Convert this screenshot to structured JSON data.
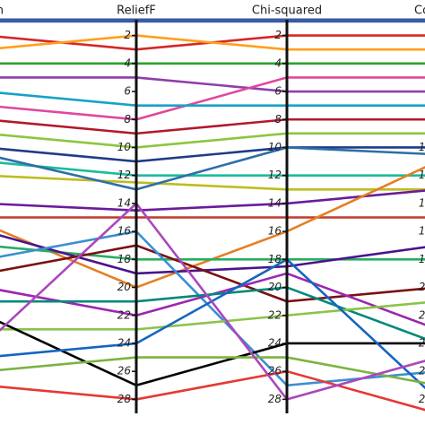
{
  "chart_data": {
    "type": "parallel",
    "axes": [
      "m",
      "ReliefF",
      "Chi-squared",
      "Co"
    ],
    "ylim": [
      29,
      1
    ],
    "yticks": [
      2,
      4,
      6,
      8,
      10,
      12,
      14,
      16,
      18,
      20,
      22,
      24,
      26,
      28
    ],
    "series": [
      {
        "color": "#3b5ba5",
        "values": [
          1,
          1,
          1,
          1
        ]
      },
      {
        "color": "#d62728",
        "values": [
          2,
          3,
          2,
          2
        ]
      },
      {
        "color": "#ff9f1c",
        "values": [
          3,
          2,
          3,
          3
        ]
      },
      {
        "color": "#2ca02c",
        "values": [
          4,
          4,
          4,
          4
        ]
      },
      {
        "color": "#8e3ea8",
        "values": [
          5,
          5,
          6,
          6
        ]
      },
      {
        "color": "#e0479e",
        "values": [
          7,
          8,
          5,
          5
        ]
      },
      {
        "color": "#17a2c8",
        "values": [
          6,
          7,
          7,
          7
        ]
      },
      {
        "color": "#b2182b",
        "values": [
          8,
          9,
          8,
          8
        ]
      },
      {
        "color": "#8cc63f",
        "values": [
          9,
          10,
          9,
          9
        ]
      },
      {
        "color": "#1f3c88",
        "values": [
          10,
          11,
          10,
          10
        ]
      },
      {
        "color": "#1abc9c",
        "values": [
          11,
          12,
          12,
          12
        ]
      },
      {
        "color": "#bcbd22",
        "values": [
          12,
          12.5,
          13,
          13
        ]
      },
      {
        "color": "#2c6fa8",
        "values": [
          10.5,
          13,
          10,
          10.5
        ]
      },
      {
        "color": "#6a1b9a",
        "values": [
          14,
          14.5,
          14,
          13
        ]
      },
      {
        "color": "#c0392b",
        "values": [
          15,
          15,
          15,
          15
        ]
      },
      {
        "color": "#e67e22",
        "values": [
          15.5,
          20,
          16,
          11
        ]
      },
      {
        "color": "#27ae60",
        "values": [
          17,
          18,
          18,
          18
        ]
      },
      {
        "color": "#4a148c",
        "values": [
          16,
          19,
          18.5,
          17
        ]
      },
      {
        "color": "#7b1010",
        "values": [
          19,
          17,
          21,
          20
        ]
      },
      {
        "color": "#3a8fd0",
        "values": [
          18,
          16,
          27,
          26
        ]
      },
      {
        "color": "#9b27b0",
        "values": [
          20,
          22,
          19,
          23
        ]
      },
      {
        "color": "#00897b",
        "values": [
          21,
          21,
          20,
          24
        ]
      },
      {
        "color": "#8bc34a",
        "values": [
          23,
          23,
          22,
          21
        ]
      },
      {
        "color": "#000000",
        "values": [
          22,
          27,
          24,
          24
        ]
      },
      {
        "color": "#1565c0",
        "values": [
          25,
          24,
          18,
          28
        ]
      },
      {
        "color": "#7cb342",
        "values": [
          26,
          25,
          25,
          27
        ]
      },
      {
        "color": "#e53935",
        "values": [
          27,
          28,
          26,
          29
        ]
      },
      {
        "color": "#ab47bc",
        "values": [
          24,
          14,
          28,
          25
        ]
      }
    ]
  }
}
